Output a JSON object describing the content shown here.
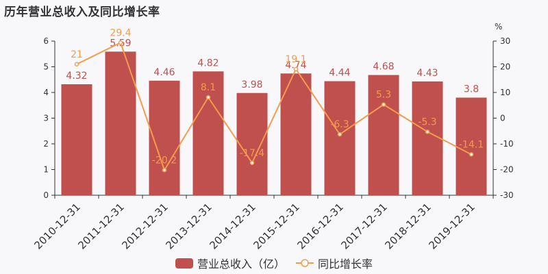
{
  "title": "历年营业总收入及同比增长率",
  "colors": {
    "bar": "#c0504d",
    "line": "#f49b4e",
    "axis": "#333333"
  },
  "legend": {
    "bar_label": "营业总收入（亿）",
    "line_label": "同比增长率"
  },
  "chart_data": {
    "type": "bar",
    "categories": [
      "2010-12-31",
      "2011-12-31",
      "2012-12-31",
      "2013-12-31",
      "2014-12-31",
      "2015-12-31",
      "2016-12-31",
      "2017-12-31",
      "2018-12-31",
      "2019-12-31"
    ],
    "series": [
      {
        "name": "营业总收入（亿）",
        "type": "bar",
        "axis": "left",
        "values": [
          4.32,
          5.59,
          4.46,
          4.82,
          3.98,
          4.74,
          4.44,
          4.68,
          4.43,
          3.8
        ]
      },
      {
        "name": "同比增长率",
        "type": "line",
        "axis": "right",
        "values": [
          21,
          29.4,
          -20.2,
          8.1,
          -17.4,
          19.1,
          -6.3,
          5.3,
          -5.3,
          -14.1
        ]
      }
    ],
    "y_left": {
      "min": 0,
      "max": 6,
      "ticks": [
        0,
        1,
        2,
        3,
        4,
        5,
        6
      ]
    },
    "y_right": {
      "min": -30,
      "max": 30,
      "ticks": [
        -30,
        -20,
        -10,
        0,
        10,
        20,
        30
      ],
      "unit": "%"
    },
    "grid": false,
    "legend_position": "bottom"
  }
}
